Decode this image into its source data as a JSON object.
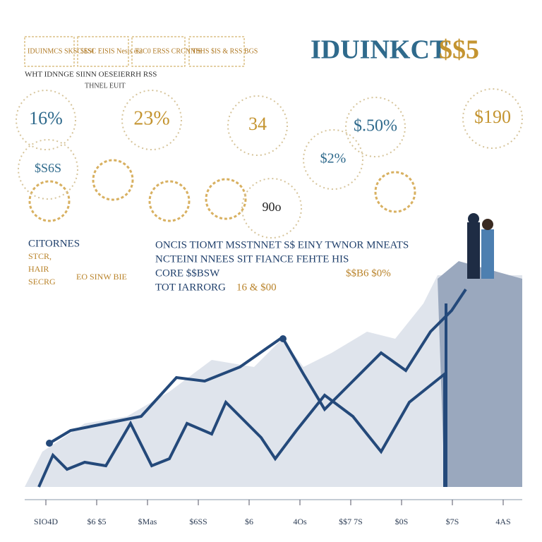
{
  "header": {
    "title": "IDUINKCT",
    "title_accent": "$$5",
    "boxes": [
      "IDUINMCS SKSC ESI",
      "$$SC EISIS Nesis ess",
      "T2C0 ERSS CRCNNIS",
      "TSHS $IS & RSS BGS"
    ],
    "subtitle": "WHT IDNNGE SIINN OESEIERRH RSS",
    "tagline": "THNEL EUIT"
  },
  "badges": [
    "16%",
    "23%",
    "34",
    "$.50%",
    "$190",
    "$2%",
    "$S6S",
    "90o"
  ],
  "left_notes": [
    "CITORNES",
    "STCR,",
    "HAIR",
    "SECRG"
  ],
  "left_aside": "EO SINW BIE",
  "center_notes": [
    "ONCIS TIOMT MSSTNNET S$ EINY TWNOR MNEATS",
    "NCTEINI NNEES SIT FIANCE FEHTE HIS",
    "CORE $$BSW",
    "TOT IARRORG"
  ],
  "center_values": [
    "16 & $00",
    "$$B6 $0%"
  ],
  "x_labels": [
    "SIO4D",
    "$6 $5",
    "$Mas",
    "$6SS",
    "$6",
    "4Os",
    "$$7 7S",
    "$0S",
    "$7S",
    "4AS"
  ]
}
